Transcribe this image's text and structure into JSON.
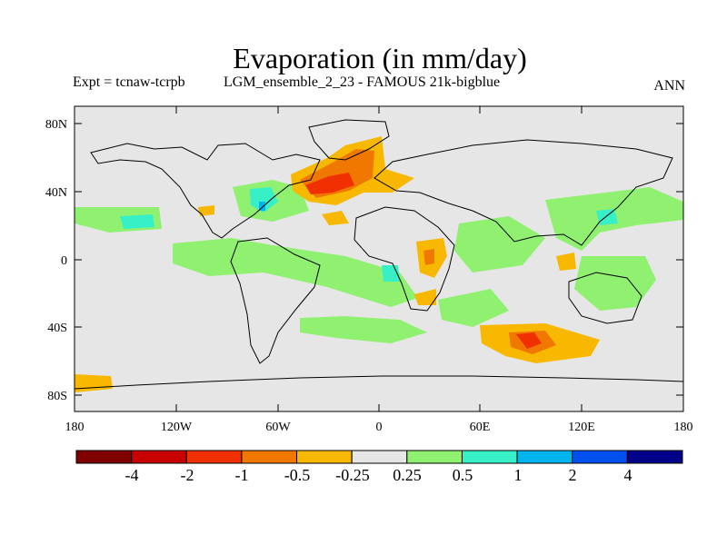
{
  "chart_data": {
    "type": "heatmap",
    "title": "Evaporation (in mm/day)",
    "subtitle_left": "Expt = tcnaw-tcrpb",
    "subtitle_mid": "LGM_ensemble_2_23 - FAMOUS 21k-bigblue",
    "subtitle_right": "ANN",
    "x_ticks": [
      "180",
      "120W",
      "60W",
      "0",
      "60E",
      "120E",
      "180"
    ],
    "y_ticks": [
      "80N",
      "40N",
      "0",
      "40S",
      "80S"
    ],
    "colorbar_labels": [
      "-4",
      "-2",
      "-1",
      "-0.5",
      "-0.25",
      "0.25",
      "0.5",
      "1",
      "2",
      "4"
    ],
    "colors": [
      "#800000",
      "#c80000",
      "#f03000",
      "#f07800",
      "#f8b800",
      "#e6e6e6",
      "#90f070",
      "#38f0c8",
      "#00b4f0",
      "#0050f0",
      "#000088"
    ],
    "map_background_color": "#e6e6e6"
  }
}
